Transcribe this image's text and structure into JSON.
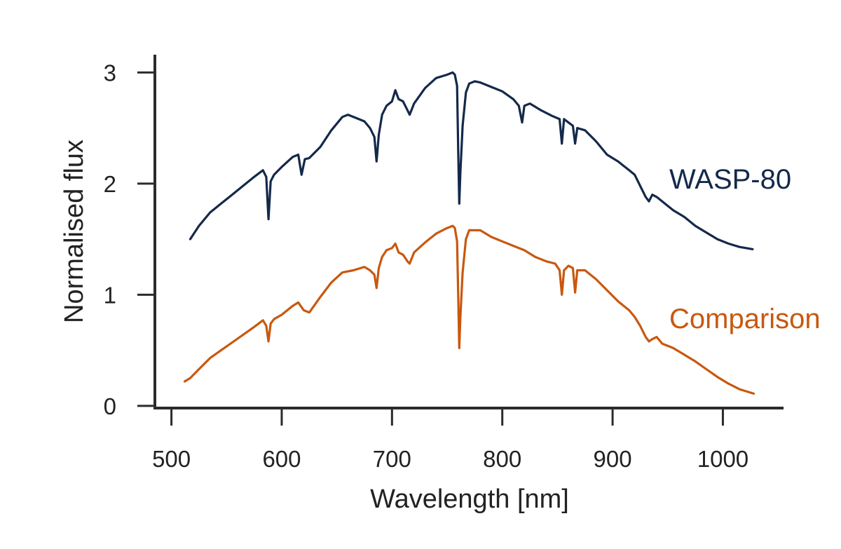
{
  "chart_data": {
    "type": "line",
    "title": "",
    "xlabel": "Wavelength [nm]",
    "ylabel": "Normalised flux",
    "xlim": [
      485,
      1055
    ],
    "ylim": [
      -0.02,
      3.16
    ],
    "xticks": [
      500,
      600,
      700,
      800,
      900,
      1000
    ],
    "xtick_labels": [
      "500",
      "600",
      "700",
      "800",
      "900",
      "1000"
    ],
    "yticks": [
      0,
      1,
      2,
      3
    ],
    "ytick_labels": [
      "0",
      "1",
      "2",
      "3"
    ],
    "grid": false,
    "legend": "inline labels at right",
    "series": [
      {
        "name": "WASP-80",
        "color": "#14294a",
        "x": [
          517,
          525,
          535,
          545,
          555,
          565,
          575,
          583,
          586,
          588,
          590,
          593,
          600,
          610,
          615,
          618,
          621,
          625,
          635,
          645,
          655,
          660,
          670,
          675,
          680,
          684,
          686,
          688,
          691,
          695,
          700,
          703,
          706,
          710,
          714,
          716,
          720,
          730,
          740,
          750,
          755,
          757,
          759,
          760,
          761,
          762,
          764,
          767,
          770,
          775,
          780,
          790,
          800,
          810,
          815,
          818,
          820,
          825,
          835,
          845,
          852,
          854,
          856,
          860,
          864,
          866,
          868,
          875,
          885,
          895,
          905,
          915,
          920,
          925,
          930,
          933,
          936,
          940,
          945,
          955,
          965,
          975,
          985,
          995,
          1005,
          1015,
          1027
        ],
        "y": [
          1.5,
          1.62,
          1.74,
          1.82,
          1.9,
          1.98,
          2.06,
          2.12,
          2.06,
          1.68,
          2.02,
          2.08,
          2.15,
          2.24,
          2.26,
          2.08,
          2.22,
          2.23,
          2.33,
          2.48,
          2.6,
          2.62,
          2.58,
          2.56,
          2.5,
          2.42,
          2.2,
          2.44,
          2.62,
          2.7,
          2.74,
          2.84,
          2.76,
          2.74,
          2.66,
          2.62,
          2.72,
          2.86,
          2.95,
          2.98,
          3.0,
          2.98,
          2.88,
          2.3,
          1.82,
          2.1,
          2.52,
          2.82,
          2.9,
          2.92,
          2.91,
          2.87,
          2.83,
          2.76,
          2.7,
          2.55,
          2.7,
          2.72,
          2.66,
          2.61,
          2.58,
          2.36,
          2.58,
          2.55,
          2.52,
          2.36,
          2.5,
          2.48,
          2.38,
          2.26,
          2.2,
          2.12,
          2.08,
          1.98,
          1.88,
          1.84,
          1.9,
          1.88,
          1.84,
          1.76,
          1.7,
          1.62,
          1.56,
          1.5,
          1.46,
          1.43,
          1.41
        ]
      },
      {
        "name": "Comparison",
        "color": "#c8580f",
        "x": [
          512,
          517,
          525,
          535,
          545,
          555,
          565,
          575,
          583,
          586,
          588,
          590,
          593,
          600,
          610,
          615,
          620,
          625,
          635,
          645,
          655,
          665,
          675,
          680,
          684,
          686,
          688,
          691,
          695,
          700,
          703,
          706,
          710,
          714,
          716,
          720,
          730,
          740,
          750,
          755,
          757,
          759,
          760,
          761,
          762,
          764,
          767,
          770,
          780,
          790,
          800,
          810,
          820,
          830,
          840,
          848,
          852,
          854,
          856,
          860,
          864,
          866,
          868,
          875,
          885,
          895,
          905,
          915,
          920,
          925,
          930,
          933,
          936,
          940,
          945,
          955,
          965,
          975,
          985,
          995,
          1005,
          1015,
          1028
        ],
        "y": [
          0.22,
          0.25,
          0.33,
          0.43,
          0.5,
          0.57,
          0.64,
          0.71,
          0.77,
          0.72,
          0.58,
          0.74,
          0.78,
          0.82,
          0.9,
          0.93,
          0.86,
          0.84,
          0.98,
          1.11,
          1.2,
          1.22,
          1.25,
          1.22,
          1.18,
          1.06,
          1.24,
          1.34,
          1.4,
          1.42,
          1.46,
          1.38,
          1.36,
          1.3,
          1.28,
          1.38,
          1.47,
          1.55,
          1.6,
          1.62,
          1.6,
          1.48,
          1.0,
          0.52,
          0.8,
          1.2,
          1.5,
          1.58,
          1.58,
          1.52,
          1.48,
          1.44,
          1.4,
          1.34,
          1.3,
          1.28,
          1.22,
          1.0,
          1.22,
          1.26,
          1.24,
          1.02,
          1.22,
          1.22,
          1.14,
          1.04,
          0.94,
          0.86,
          0.8,
          0.72,
          0.62,
          0.58,
          0.6,
          0.62,
          0.56,
          0.52,
          0.46,
          0.4,
          0.33,
          0.26,
          0.2,
          0.15,
          0.11
        ]
      }
    ]
  }
}
